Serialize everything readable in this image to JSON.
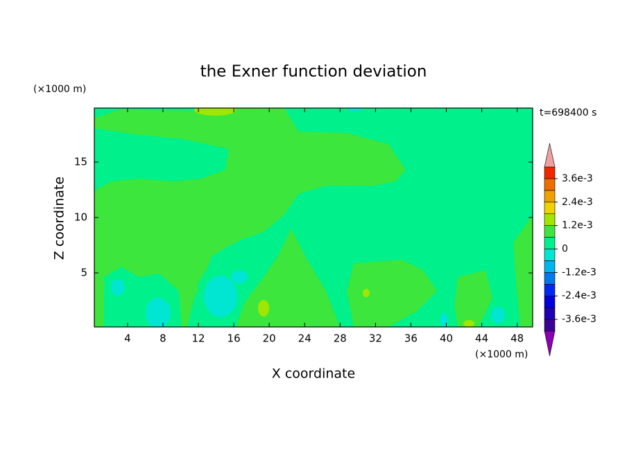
{
  "chart_data": {
    "type": "contour",
    "title": "the Exner function deviation",
    "x_label": "X coordinate",
    "y_label": "Z coordinate",
    "x_unit": "(×1000 m)",
    "y_unit": "(×1000 m)",
    "annotation": "t=698400 s",
    "xlim": [
      0.25,
      49.75
    ],
    "xticks": [
      4,
      8,
      12,
      16,
      20,
      24,
      28,
      32,
      36,
      40,
      44,
      48
    ],
    "ylim": [
      0.125,
      19.875
    ],
    "yticks": [
      5,
      10,
      15
    ],
    "colorbar": {
      "levels": [
        -0.0042,
        -0.0036,
        -0.003,
        -0.0024,
        -0.0018,
        -0.0012,
        -0.0006,
        0,
        0.0006,
        0.0012,
        0.0018,
        0.0024,
        0.003,
        0.0036,
        0.0042
      ],
      "colors": [
        "#3c0096",
        "#1e00b4",
        "#0000dc",
        "#0028f0",
        "#0078f0",
        "#00b4f0",
        "#00e6d2",
        "#00f08c",
        "#3ce63c",
        "#a0e600",
        "#f0d200",
        "#f0a000",
        "#f06e00",
        "#f02800"
      ],
      "under_color": "#8c00b4",
      "over_color": "#f0a0a0",
      "ticks": [
        {
          "value": 0.0036,
          "label": "3.6e-3"
        },
        {
          "value": 0.0024,
          "label": "2.4e-3"
        },
        {
          "value": 0.0012,
          "label": "1.2e-3"
        },
        0,
        {
          "value": -0.0012,
          "label": "-1.2e-3"
        },
        {
          "value": -0.0024,
          "label": "-2.4e-3"
        },
        {
          "value": -0.0036,
          "label": "-3.6e-3"
        }
      ]
    }
  }
}
